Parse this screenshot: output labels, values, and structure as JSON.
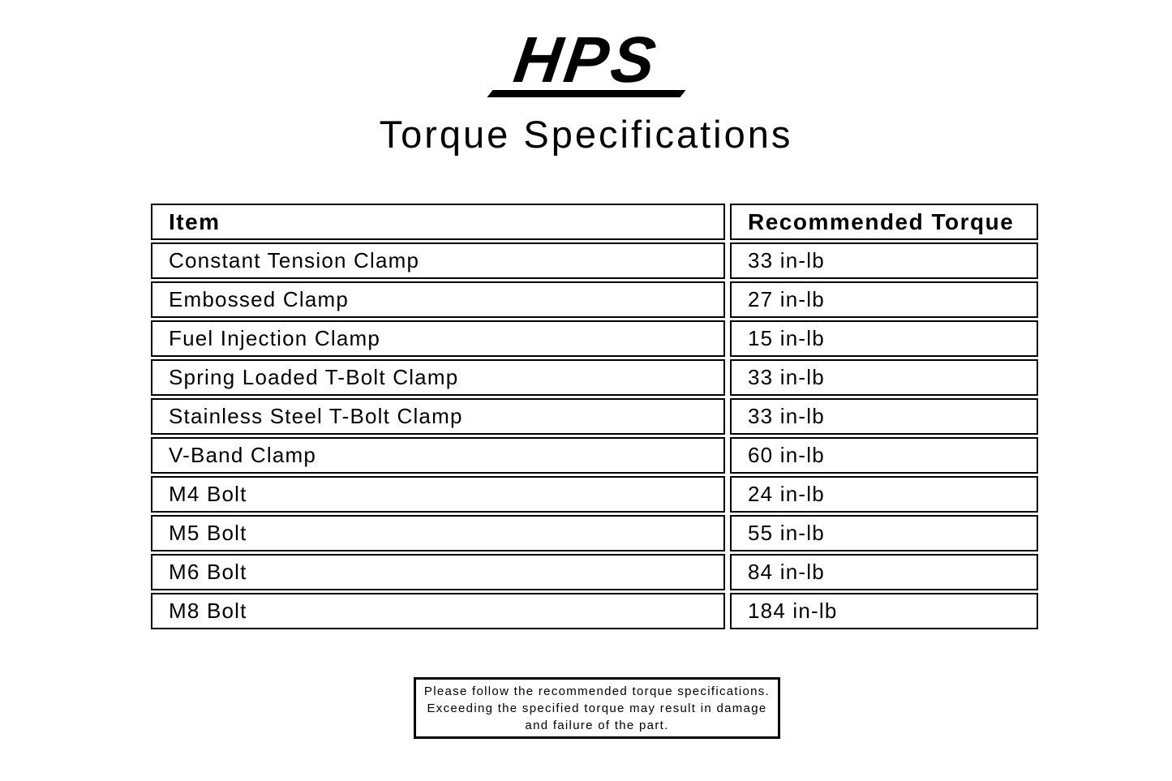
{
  "page": {
    "background_color": "#ffffff",
    "text_color": "#000000"
  },
  "logo": {
    "text": "HPS"
  },
  "title": "Torque Specifications",
  "table": {
    "headers": [
      "Item",
      "Recommended Torque"
    ],
    "rows": [
      [
        "Constant Tension Clamp",
        "33 in-lb"
      ],
      [
        "Embossed Clamp",
        "27 in-lb"
      ],
      [
        "Fuel Injection Clamp",
        "15 in-lb"
      ],
      [
        "Spring Loaded T-Bolt Clamp",
        "33 in-lb"
      ],
      [
        "Stainless Steel T-Bolt Clamp",
        "33 in-lb"
      ],
      [
        "V-Band Clamp",
        "60 in-lb"
      ],
      [
        "M4 Bolt",
        "24 in-lb"
      ],
      [
        "M5 Bolt",
        "55 in-lb"
      ],
      [
        "M6 Bolt",
        "84 in-lb"
      ],
      [
        "M8 Bolt",
        "184 in-lb"
      ]
    ]
  },
  "note": {
    "lines": [
      "Please follow the recommended torque specifications.",
      "Exceeding the specified torque may result in damage",
      "and failure of the part."
    ]
  }
}
